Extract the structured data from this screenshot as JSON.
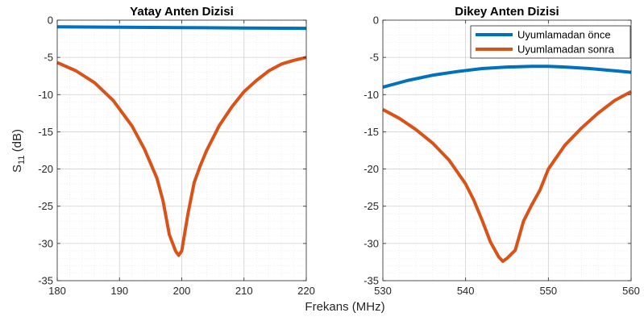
{
  "figure": {
    "xlabel": "Frekans (MHz)",
    "ylabel_main": "S",
    "ylabel_sub": "11",
    "ylabel_unit": " (dB)"
  },
  "legend": {
    "entries": [
      "Uyumlamadan önce",
      "Uyumlamadan sonra"
    ]
  },
  "colors": {
    "before": "#0072BD",
    "after": "#D95319"
  },
  "chart_data": [
    {
      "type": "line",
      "title": "Yatay Anten Dizisi",
      "xlim": [
        180,
        220
      ],
      "ylim": [
        -35,
        0
      ],
      "xticks": [
        180,
        190,
        200,
        210,
        220
      ],
      "yticks": [
        0,
        -5,
        -10,
        -15,
        -20,
        -25,
        -30,
        -35
      ],
      "grid": true,
      "series": [
        {
          "name": "Uyumlamadan önce",
          "x": [
            180,
            190,
            200,
            210,
            220
          ],
          "y": [
            -0.9,
            -0.95,
            -1.0,
            -1.05,
            -1.1
          ]
        },
        {
          "name": "Uyumlamadan sonra",
          "x": [
            180,
            183,
            186,
            189,
            192,
            194,
            196,
            197,
            198,
            199,
            199.5,
            200,
            201,
            202,
            203,
            204,
            206,
            208,
            210,
            212,
            214,
            216,
            218,
            220
          ],
          "y": [
            -5.7,
            -6.8,
            -8.4,
            -10.8,
            -14.2,
            -17.3,
            -21.2,
            -24.3,
            -28.8,
            -31.0,
            -31.6,
            -31.0,
            -26.0,
            -21.8,
            -19.5,
            -17.5,
            -14.2,
            -11.7,
            -9.6,
            -8.1,
            -6.8,
            -5.9,
            -5.4,
            -5.0
          ]
        }
      ]
    },
    {
      "type": "line",
      "title": "Dikey Anten Dizisi",
      "xlim": [
        530,
        560
      ],
      "ylim": [
        -35,
        0
      ],
      "xticks": [
        530,
        540,
        550,
        560
      ],
      "yticks": [
        0,
        -5,
        -10,
        -15,
        -20,
        -25,
        -30,
        -35
      ],
      "grid": true,
      "legend": "top-right",
      "series": [
        {
          "name": "Uyumlamadan önce",
          "x": [
            530,
            533,
            536,
            539,
            542,
            545,
            548,
            550,
            552,
            555,
            558,
            560
          ],
          "y": [
            -9.0,
            -8.1,
            -7.4,
            -6.9,
            -6.5,
            -6.3,
            -6.2,
            -6.2,
            -6.3,
            -6.5,
            -6.8,
            -7.0
          ]
        },
        {
          "name": "Uyumlamadan sonra",
          "x": [
            530,
            532,
            534,
            536,
            538,
            540,
            541,
            542,
            543,
            544,
            544.5,
            545,
            546,
            547,
            548,
            549,
            550,
            552,
            554,
            556,
            558,
            560
          ],
          "y": [
            -12.0,
            -13.2,
            -14.7,
            -16.5,
            -18.8,
            -22.0,
            -24.2,
            -26.9,
            -29.8,
            -31.8,
            -32.4,
            -32.0,
            -30.9,
            -27.0,
            -24.8,
            -22.8,
            -20.0,
            -16.8,
            -14.5,
            -12.5,
            -10.8,
            -9.6
          ]
        }
      ]
    }
  ]
}
